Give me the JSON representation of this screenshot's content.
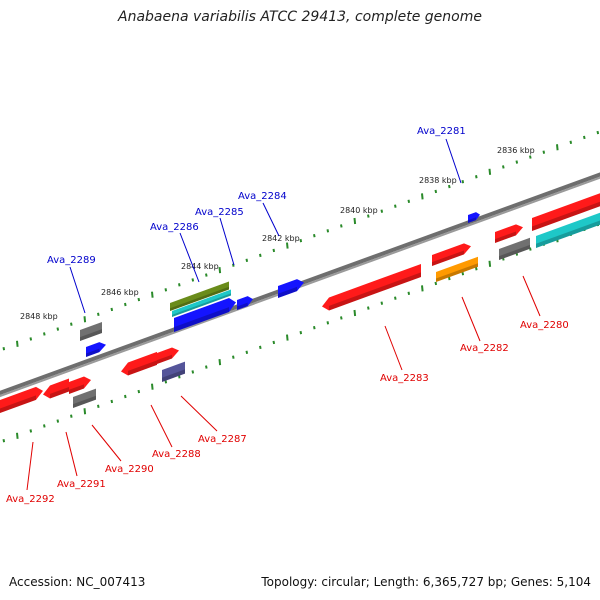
{
  "title": "Anabaena variabilis ATCC 29413, complete genome",
  "footer": {
    "accession": "Accession: NC_007413",
    "stats": "Topology: circular; Length: 6,365,727 bp; Genes: 5,104"
  },
  "scale_labels": [
    "2836 kbp",
    "2838 kbp",
    "2840 kbp",
    "2842 kbp",
    "2844 kbp",
    "2846 kbp",
    "2848 kbp"
  ],
  "colors": {
    "forward_label": "#0000cc",
    "reverse_label": "#e00000",
    "backbone": "#7a7a7a",
    "tick": "#2a8a2a",
    "red": "#ff1a1a",
    "blue": "#1414ff",
    "gray": "#707070",
    "cyan": "#1ec8c8",
    "olive": "#6a8c1a",
    "orange": "#ff9a00",
    "purple": "#55559a"
  },
  "gene_labels": {
    "forward": [
      "Ava_2281",
      "Ava_2284",
      "Ava_2285",
      "Ava_2286",
      "Ava_2289"
    ],
    "reverse": [
      "Ava_2280",
      "Ava_2282",
      "Ava_2283",
      "Ava_2287",
      "Ava_2288",
      "Ava_2290",
      "Ava_2291",
      "Ava_2292"
    ]
  }
}
